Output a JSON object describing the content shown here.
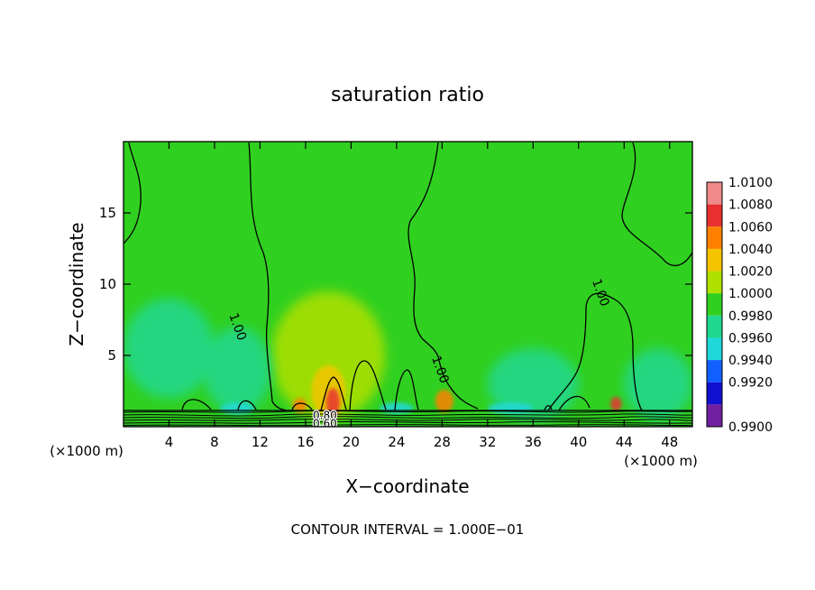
{
  "chart_data": {
    "type": "heatmap",
    "title": "saturation ratio",
    "xlabel": "X−coordinate",
    "ylabel": "Z−coordinate",
    "x_unit_left": "(×1000 m)",
    "x_unit_right": "(×1000 m)",
    "footer": "CONTOUR INTERVAL = 1.000E−01",
    "xlim": [
      0,
      50
    ],
    "ylim": [
      0,
      20
    ],
    "x_ticks": [
      4,
      8,
      12,
      16,
      20,
      24,
      28,
      32,
      36,
      40,
      44,
      48
    ],
    "x_tick_labels": [
      "4",
      "8",
      "12",
      "16",
      "20",
      "24",
      "28",
      "32",
      "36",
      "40",
      "44",
      "48"
    ],
    "y_ticks": [
      5,
      10,
      15
    ],
    "y_tick_labels": [
      "5",
      "10",
      "15"
    ],
    "colorbar": {
      "levels": [
        "1.0100",
        "1.0080",
        "1.0060",
        "1.0040",
        "1.0020",
        "1.0000",
        "0.9980",
        "0.9960",
        "0.9940",
        "0.9920",
        "0.9900"
      ],
      "colors": [
        "#f08a8a",
        "#e83030",
        "#ff8000",
        "#f4c400",
        "#b0e000",
        "#30d020",
        "#20d890",
        "#20d8d8",
        "#1060ff",
        "#1010d0",
        "#7020a0"
      ]
    },
    "contour_labels": [
      {
        "text": "1.00",
        "x": 10.0,
        "y": 7.0
      },
      {
        "text": "1.00",
        "x": 27.8,
        "y": 4.0
      },
      {
        "text": "1.00",
        "x": 41.9,
        "y": 9.4
      },
      {
        "text": "0.80",
        "x": 17.7,
        "y": 0.75
      },
      {
        "text": "0.60",
        "x": 17.7,
        "y": 0.2
      }
    ],
    "regions": [
      {
        "x": 18.0,
        "y": 5.0,
        "rx": 5.0,
        "ry": 4.5,
        "level": "1.0020"
      },
      {
        "x": 18.0,
        "y": 2.5,
        "rx": 1.5,
        "ry": 1.8,
        "level": "1.0040"
      },
      {
        "x": 18.4,
        "y": 1.7,
        "rx": 0.6,
        "ry": 1.0,
        "level": "1.0080"
      },
      {
        "x": 15.5,
        "y": 1.5,
        "rx": 0.6,
        "ry": 0.5,
        "level": "1.0060"
      },
      {
        "x": 28.2,
        "y": 1.8,
        "rx": 0.8,
        "ry": 0.8,
        "level": "1.0060"
      },
      {
        "x": 43.3,
        "y": 1.6,
        "rx": 0.5,
        "ry": 0.5,
        "level": "1.0080"
      },
      {
        "x": 4.0,
        "y": 5.5,
        "rx": 4.0,
        "ry": 3.5,
        "level": "0.9980"
      },
      {
        "x": 10.0,
        "y": 4.0,
        "rx": 3.0,
        "ry": 3.0,
        "level": "0.9980"
      },
      {
        "x": 36.0,
        "y": 3.0,
        "rx": 4.0,
        "ry": 2.5,
        "level": "0.9980"
      },
      {
        "x": 47.0,
        "y": 3.0,
        "rx": 3.0,
        "ry": 2.5,
        "level": "0.9980"
      },
      {
        "x": 10.0,
        "y": 1.3,
        "rx": 1.5,
        "ry": 0.4,
        "level": "0.9960"
      },
      {
        "x": 34.0,
        "y": 1.3,
        "rx": 2.0,
        "ry": 0.4,
        "level": "0.9960"
      },
      {
        "x": 24.0,
        "y": 1.3,
        "rx": 1.5,
        "ry": 0.4,
        "level": "0.9960"
      }
    ]
  }
}
